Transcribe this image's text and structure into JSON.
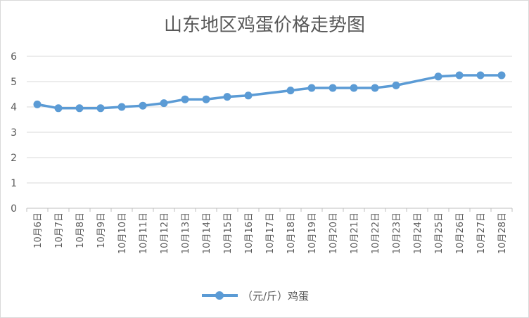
{
  "chart_data": {
    "type": "line",
    "title": "山东地区鸡蛋价格走势图",
    "xlabel": "",
    "ylabel": "",
    "ylim": [
      0,
      6
    ],
    "yticks": [
      0,
      1,
      2,
      3,
      4,
      5,
      6
    ],
    "grid": true,
    "legend_position": "bottom",
    "categories": [
      "10月6日",
      "10月7日",
      "10月8日",
      "10月9日",
      "10月10日",
      "10月11日",
      "10月12日",
      "10月13日",
      "10月14日",
      "10月15日",
      "10月16日",
      "10月17日",
      "10月18日",
      "10月19日",
      "10月20日",
      "10月21日",
      "10月22日",
      "10月23日",
      "10月24日",
      "10月25日",
      "10月26日",
      "10月27日",
      "10月28日"
    ],
    "series": [
      {
        "name": "（元/斤）鸡蛋",
        "color": "#5b9bd5",
        "values": [
          4.1,
          3.95,
          3.95,
          3.95,
          4.0,
          4.05,
          4.15,
          4.3,
          4.3,
          4.4,
          4.45,
          null,
          4.65,
          4.75,
          4.75,
          4.75,
          4.75,
          4.85,
          null,
          5.2,
          5.25,
          5.25,
          5.25
        ]
      }
    ]
  }
}
